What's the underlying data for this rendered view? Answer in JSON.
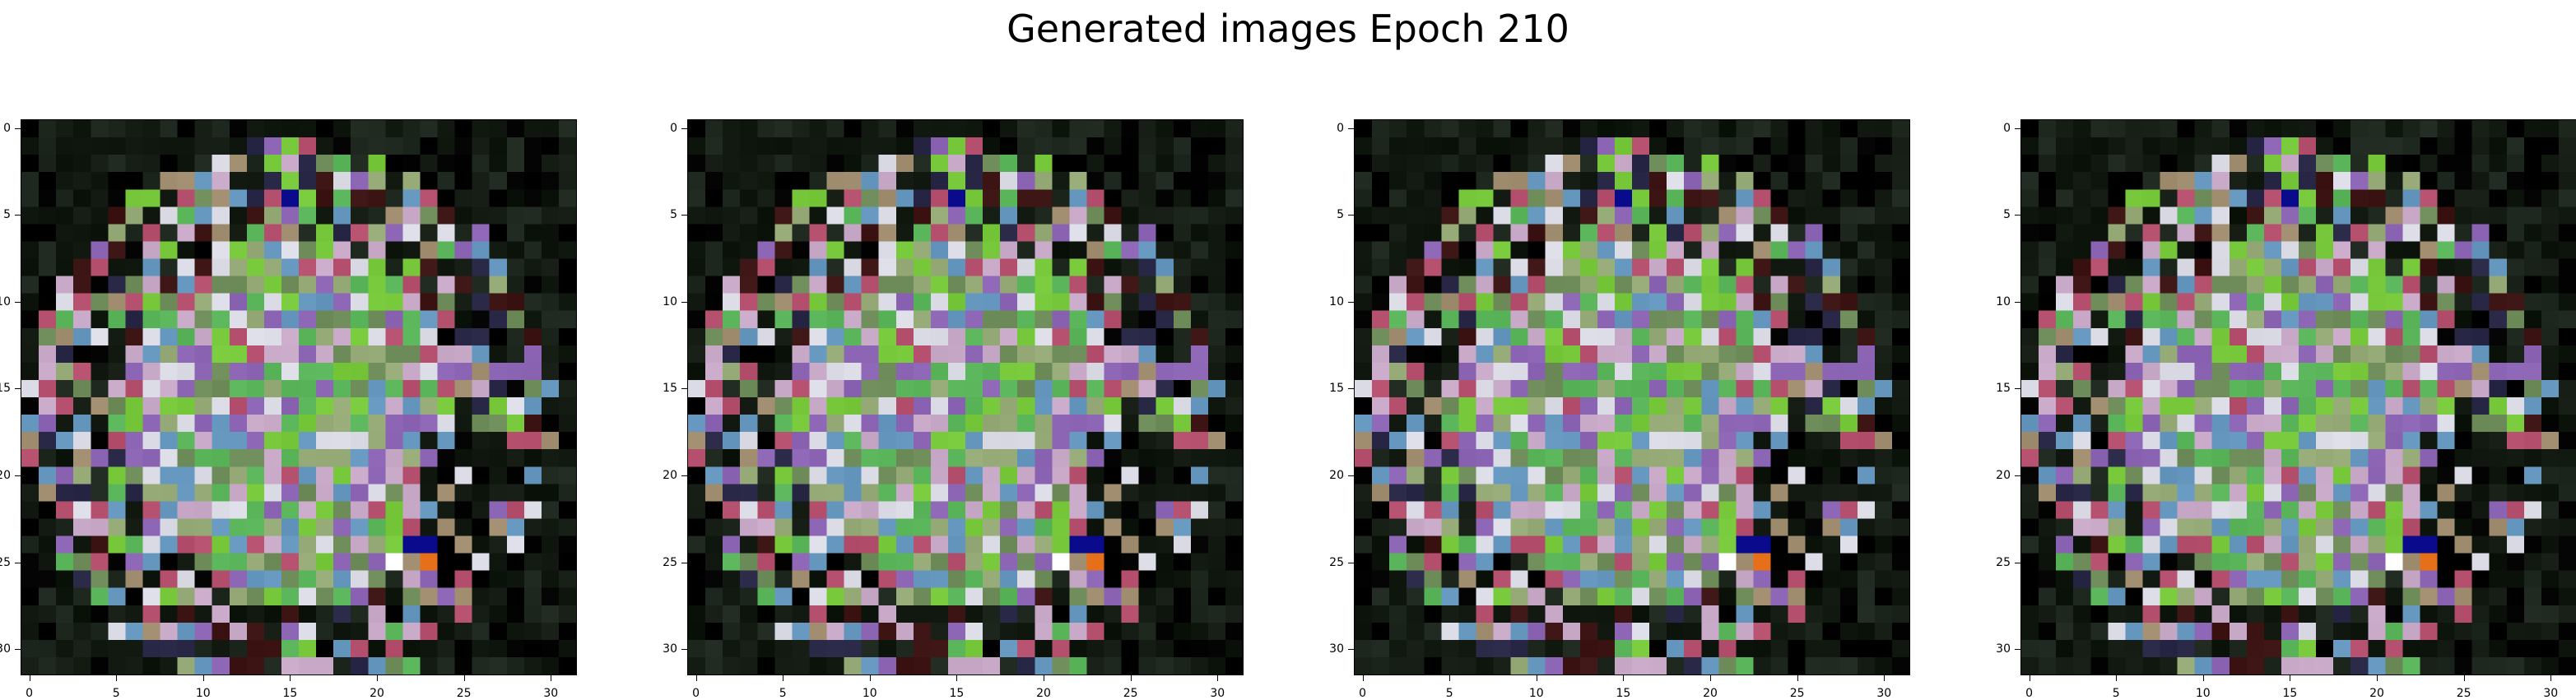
{
  "title": "Generated images Epoch 210",
  "chart_data": [
    {
      "type": "heatmap",
      "content": "rgb image, 32x32 pixels",
      "x_ticks": [
        "0",
        "5",
        "10",
        "15",
        "20",
        "25",
        "30"
      ],
      "y_ticks": [
        "0",
        "5",
        "10",
        "15",
        "20",
        "25",
        "30"
      ],
      "xlim": [
        -0.5,
        31.5
      ],
      "ylim": [
        31.5,
        -0.5
      ]
    },
    {
      "type": "heatmap",
      "content": "rgb image, 32x32 pixels",
      "x_ticks": [
        "0",
        "5",
        "10",
        "15",
        "20",
        "25",
        "30"
      ],
      "y_ticks": [
        "0",
        "5",
        "10",
        "15",
        "20",
        "25",
        "30"
      ],
      "xlim": [
        -0.5,
        31.5
      ],
      "ylim": [
        31.5,
        -0.5
      ]
    },
    {
      "type": "heatmap",
      "content": "rgb image, 32x32 pixels",
      "x_ticks": [
        "0",
        "5",
        "10",
        "15",
        "20",
        "25",
        "30"
      ],
      "y_ticks": [
        "0",
        "5",
        "10",
        "15",
        "20",
        "25",
        "30"
      ],
      "xlim": [
        -0.5,
        31.5
      ],
      "ylim": [
        31.5,
        -0.5
      ]
    },
    {
      "type": "heatmap",
      "content": "rgb image, 32x32 pixels",
      "x_ticks": [
        "0",
        "5",
        "10",
        "15",
        "20",
        "25",
        "30"
      ],
      "y_ticks": [
        "0",
        "5",
        "10",
        "15",
        "20",
        "25",
        "30"
      ],
      "xlim": [
        -0.5,
        31.5
      ],
      "ylim": [
        31.5,
        -0.5
      ]
    }
  ]
}
